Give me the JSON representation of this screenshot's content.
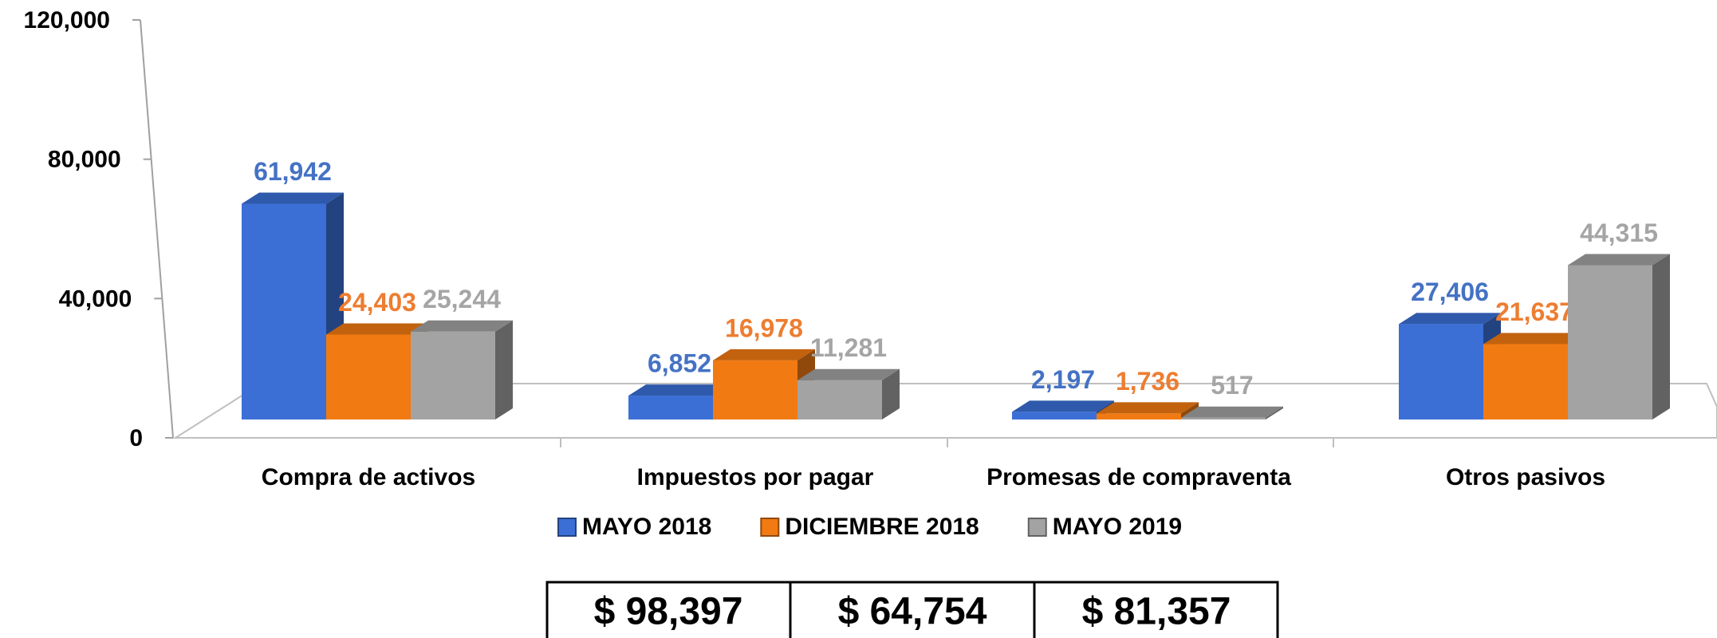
{
  "chart_data": {
    "type": "bar3d",
    "categories": [
      "Compra de activos",
      "Impuestos por pagar",
      "Promesas de compraventa",
      "Otros pasivos"
    ],
    "series": [
      {
        "name": "MAYO 2018",
        "color": "#3b6fd6",
        "label_color": "#4472c4",
        "values": [
          61942,
          6852,
          2197,
          27406
        ],
        "value_labels": [
          "61,942",
          "6,852",
          "2,197",
          "27,406"
        ]
      },
      {
        "name": "DICIEMBRE 2018",
        "color": "#f27a12",
        "label_color": "#ed7d31",
        "values": [
          24403,
          16978,
          1736,
          21637
        ],
        "value_labels": [
          "24,403",
          "16,978",
          "1,736",
          "21,637"
        ]
      },
      {
        "name": "MAYO 2019",
        "color": "#a3a3a3",
        "label_color": "#a5a5a5",
        "values": [
          25244,
          11281,
          517,
          44315
        ],
        "value_labels": [
          "25,244",
          "11,281",
          "517",
          "44,315"
        ]
      }
    ],
    "ylim": [
      0,
      120000
    ],
    "yticks": [
      0,
      {
        "value": 40000,
        "label": "40,000"
      },
      {
        "value": 80000,
        "label": "80,000"
      },
      {
        "value": 120000,
        "label": "120,000"
      }
    ],
    "legend": "bottom",
    "totals": [
      "$ 98,397",
      "$ 64,754",
      "$ 81,357"
    ]
  }
}
